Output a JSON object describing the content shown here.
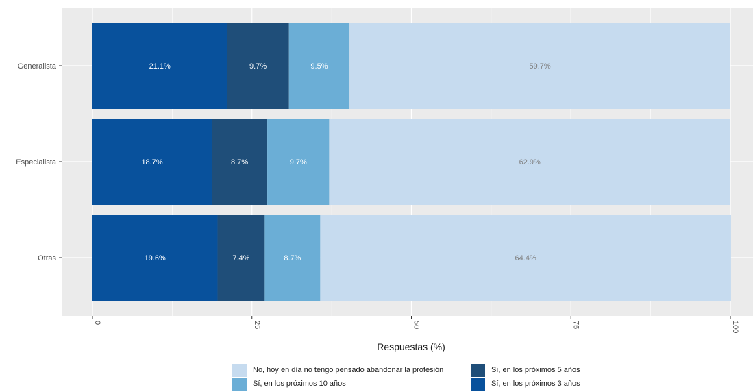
{
  "chart_data": {
    "type": "bar",
    "orientation": "horizontal",
    "stacked": true,
    "categories": [
      "Generalista",
      "Especialista",
      "Otras"
    ],
    "series": [
      {
        "name": "Sí, en los próximos 3 años",
        "values": [
          21.1,
          18.7,
          19.6
        ],
        "labels": [
          "21.1%",
          "18.7%",
          "19.6%"
        ],
        "color": "#08519c"
      },
      {
        "name": "Sí, en los próximos 5 años",
        "values": [
          9.7,
          8.7,
          7.4
        ],
        "labels": [
          "9.7%",
          "8.7%",
          "7.4%"
        ],
        "color": "#1f4e79"
      },
      {
        "name": "Sí, en los próximos 10 años",
        "values": [
          9.5,
          9.7,
          8.7
        ],
        "labels": [
          "9.5%",
          "9.7%",
          "8.7%"
        ],
        "color": "#6baed6"
      },
      {
        "name": "No, hoy en día no tengo pensado abandonar la profesión",
        "values": [
          59.7,
          62.9,
          64.4
        ],
        "labels": [
          "59.7%",
          "62.9%",
          "64.4%"
        ],
        "color": "#c6dbef"
      }
    ],
    "xlabel": "Respuestas (%)",
    "ylabel": "",
    "xlim": [
      0,
      100
    ],
    "xticks": [
      "0",
      "25",
      "50",
      "75",
      "100"
    ],
    "grid": true,
    "legend_position": "bottom",
    "legend": [
      {
        "label": "No, hoy en día no tengo pensado abandonar la profesión",
        "color": "#c6dbef"
      },
      {
        "label": "Sí, en los próximos 5 años",
        "color": "#1f4e79"
      },
      {
        "label": "Sí, en los próximos 10 años",
        "color": "#6baed6"
      },
      {
        "label": "Sí, en los próximos 3 años",
        "color": "#08519c"
      }
    ],
    "label_colors": {
      "dark": "#ffffff",
      "light": "#7f7f7f"
    },
    "panel_background": "#ebebeb"
  }
}
